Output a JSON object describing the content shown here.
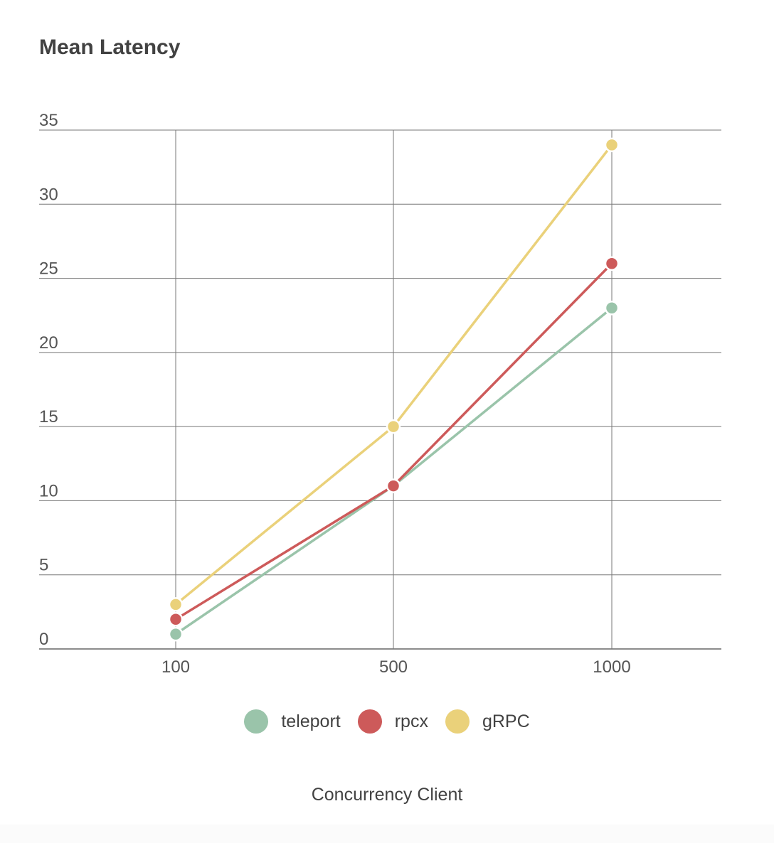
{
  "chart_data": {
    "type": "line",
    "title": "Mean Latency",
    "xlabel": "Concurrency Client",
    "ylabel": "",
    "categories": [
      "100",
      "500",
      "1000"
    ],
    "ylim": [
      0,
      35
    ],
    "yticks": [
      0,
      5,
      10,
      15,
      20,
      25,
      30,
      35
    ],
    "grid": true,
    "legend_position": "bottom",
    "series": [
      {
        "name": "teleport",
        "color": "#9ac4aa",
        "values": [
          1,
          11,
          23
        ]
      },
      {
        "name": "rpcx",
        "color": "#cd5a5a",
        "values": [
          2,
          11,
          26
        ]
      },
      {
        "name": "gRPC",
        "color": "#ead17a",
        "values": [
          3,
          15,
          34
        ]
      }
    ]
  }
}
